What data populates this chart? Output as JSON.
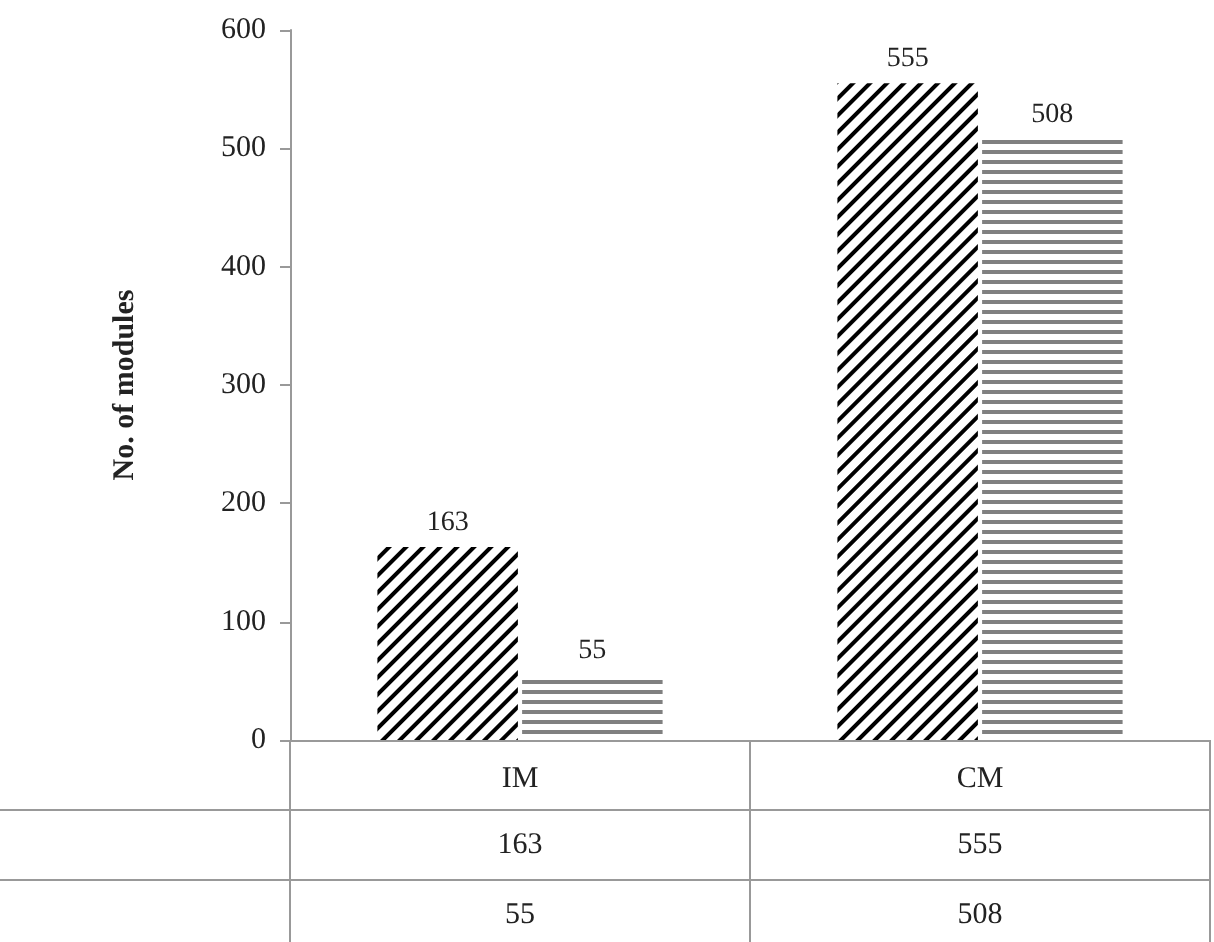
{
  "chart_data": {
    "type": "bar",
    "ylabel": "No. of modules",
    "categories": [
      "IM",
      "CM"
    ],
    "series": [
      {
        "color": "#000000",
        "values": [
          163,
          555
        ],
        "value_labels": [
          "163",
          "555"
        ]
      },
      {
        "color": "#808080",
        "values": [
          55,
          508
        ],
        "value_labels": [
          "55",
          "508"
        ]
      }
    ],
    "annotations": [
      "163",
      "555",
      "55",
      "508"
    ],
    "ylim": [
      0,
      600
    ],
    "yticks": [
      0,
      100,
      200,
      300,
      400,
      500,
      600
    ],
    "data_labels": true
  }
}
